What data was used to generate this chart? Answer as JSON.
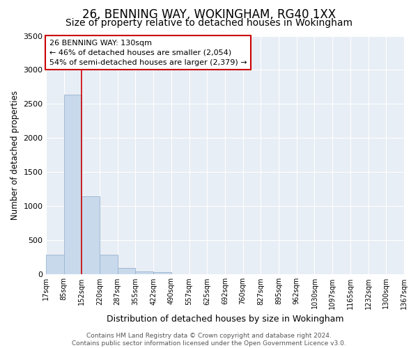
{
  "title": "26, BENNING WAY, WOKINGHAM, RG40 1XX",
  "subtitle": "Size of property relative to detached houses in Wokingham",
  "xlabel": "Distribution of detached houses by size in Wokingham",
  "ylabel": "Number of detached properties",
  "annotation_line1": "26 BENNING WAY: 130sqm",
  "annotation_line2": "← 46% of detached houses are smaller (2,054)",
  "annotation_line3": "54% of semi-detached houses are larger (2,379) →",
  "footer_line1": "Contains HM Land Registry data © Crown copyright and database right 2024.",
  "footer_line2": "Contains public sector information licensed under the Open Government Licence v3.0.",
  "bin_labels": [
    "17sqm",
    "85sqm",
    "152sqm",
    "220sqm",
    "287sqm",
    "355sqm",
    "422sqm",
    "490sqm",
    "557sqm",
    "625sqm",
    "692sqm",
    "760sqm",
    "827sqm",
    "895sqm",
    "962sqm",
    "1030sqm",
    "1097sqm",
    "1165sqm",
    "1232sqm",
    "1300sqm",
    "1367sqm"
  ],
  "bar_values": [
    285,
    2635,
    1140,
    285,
    90,
    42,
    28,
    0,
    0,
    0,
    0,
    0,
    0,
    0,
    0,
    0,
    0,
    0,
    0,
    0
  ],
  "bar_color": "#c8d9eb",
  "bar_edge_color": "#9ab4cf",
  "vline_color": "#cc0000",
  "annotation_box_color": "#ffffff",
  "annotation_box_edge": "#cc0000",
  "ylim": [
    0,
    3500
  ],
  "yticks": [
    0,
    500,
    1000,
    1500,
    2000,
    2500,
    3000,
    3500
  ],
  "fig_background": "#ffffff",
  "plot_background": "#e8eef5",
  "grid_color": "#ffffff",
  "title_fontsize": 12,
  "subtitle_fontsize": 10,
  "footer_fontsize": 6.5
}
